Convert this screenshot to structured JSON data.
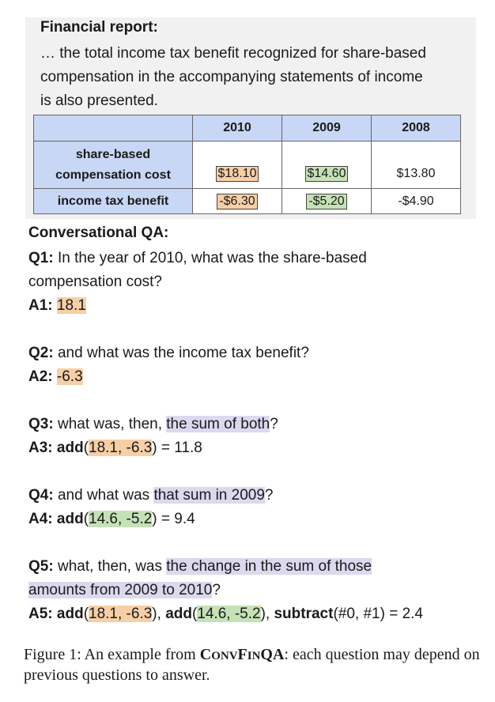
{
  "report": {
    "title": "Financial report:",
    "text": "… the total income tax benefit recognized for share-based compensation in the accompanying statements of income is also presented.",
    "table": {
      "headers": [
        "",
        "2010",
        "2009",
        "2008"
      ],
      "rows": [
        {
          "label": "share-based compensation cost",
          "values": [
            "$18.10",
            "$14.60",
            "$13.80"
          ]
        },
        {
          "label": "income tax benefit",
          "values": [
            "-$6.30",
            "-$5.20",
            "-$4.90"
          ]
        }
      ]
    }
  },
  "conversation": {
    "title": "Conversational QA:",
    "q1": {
      "label": "Q1:",
      "text": "In the year of 2010, what was the share-based compensation cost?"
    },
    "a1": {
      "label": "A1:",
      "answer": "18.1"
    },
    "q2": {
      "label": "Q2:",
      "text": "and what was the income tax benefit?"
    },
    "a2": {
      "label": "A2:",
      "answer": "-6.3"
    },
    "q3": {
      "label": "Q3:",
      "pre": "what was, then,",
      "highlight": "the sum of both",
      "post": "?"
    },
    "a3": {
      "label": "A3:",
      "op": "add",
      "args": "18.1, -6.3",
      "result": "= 11.8"
    },
    "q4": {
      "label": "Q4:",
      "pre": "and what was",
      "highlight": "that sum in 2009",
      "post": "?"
    },
    "a4": {
      "label": "A4:",
      "op": "add",
      "args": "14.6, -5.2",
      "result": "= 9.4"
    },
    "q5": {
      "label": "Q5:",
      "pre": "what, then, was",
      "highlight_line1": "the change in the sum of those",
      "highlight_line2": "amounts from 2009 to 2010",
      "post": "?"
    },
    "a5": {
      "label": "A5:",
      "op1": "add",
      "args1": "18.1, -6.3",
      "op2": "add",
      "args2": "14.6, -5.2",
      "op3": "subtract",
      "args3": "(#0, #1)",
      "result": "= 2.4"
    }
  },
  "caption": {
    "prefix": "Figure 1:  An example from",
    "name_first1": "C",
    "name_rest1": "ONV",
    "name_first2": "F",
    "name_rest2": "IN",
    "name_tail": "QA",
    "suffix": ": each question may depend on previous questions to answer."
  },
  "colors": {
    "orange": "#f7cfa6",
    "green": "#c5e2b6",
    "purple": "#dcd8ee",
    "table_header": "#c8d7f5"
  }
}
